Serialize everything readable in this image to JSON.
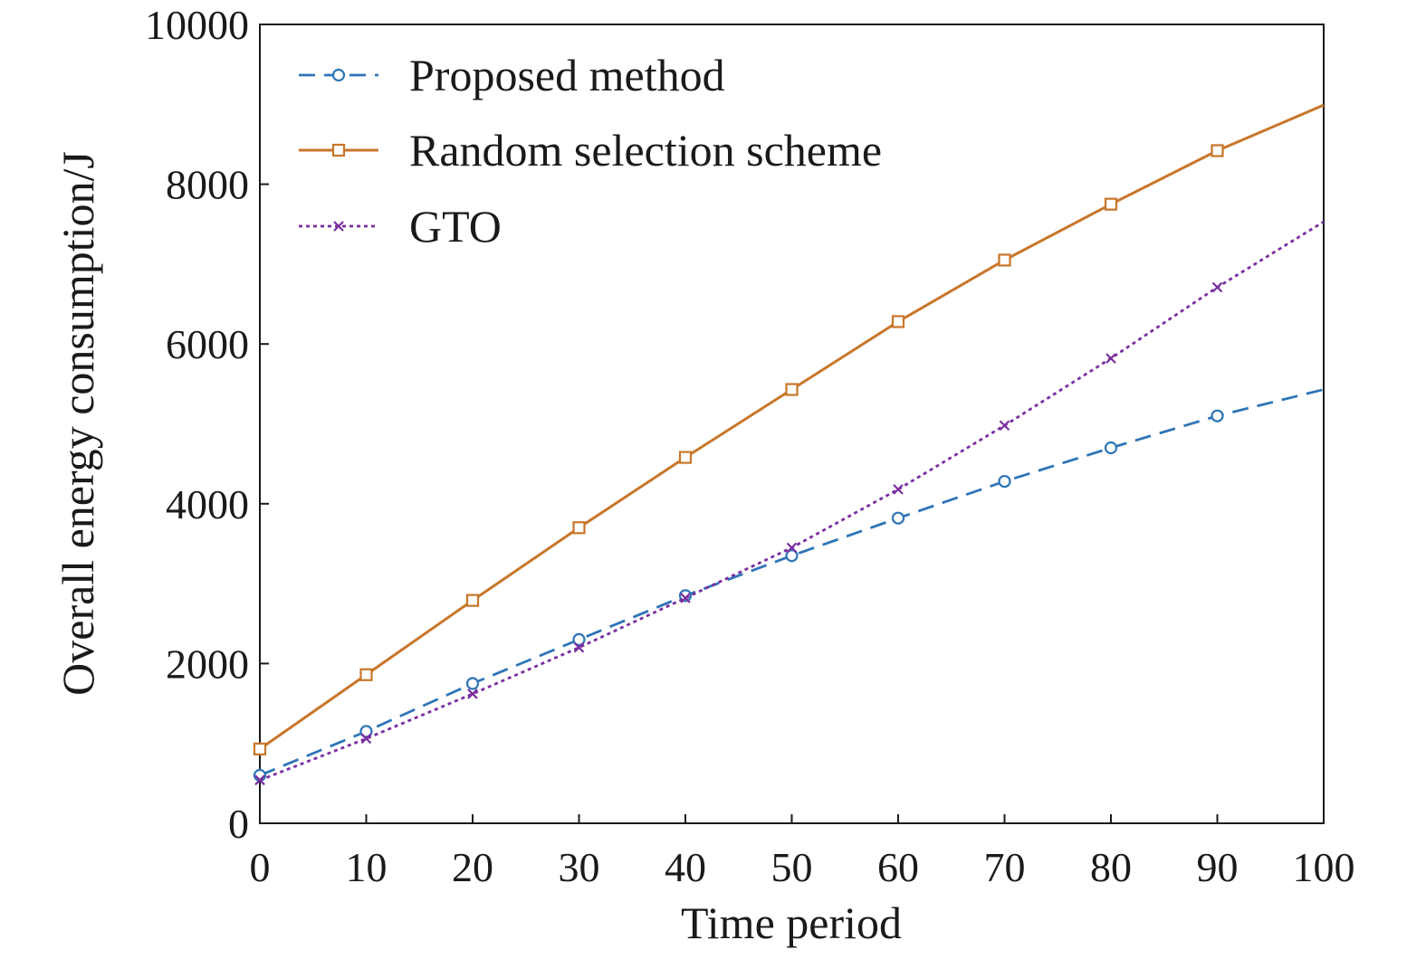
{
  "chart_data": {
    "type": "line",
    "xlabel": "Time period",
    "ylabel": "Overall energy consumption/J",
    "xlim": [
      0,
      100
    ],
    "ylim": [
      0,
      10000
    ],
    "xticks": [
      0,
      10,
      20,
      30,
      40,
      50,
      60,
      70,
      80,
      90,
      100
    ],
    "yticks": [
      0,
      2000,
      4000,
      6000,
      8000,
      10000
    ],
    "xtick_labels": [
      "0",
      "10",
      "20",
      "30",
      "40",
      "50",
      "60",
      "70",
      "80",
      "90",
      "100"
    ],
    "ytick_labels": [
      "0",
      "2000",
      "4000",
      "6000",
      "8000",
      "10000"
    ],
    "grid": false,
    "legend_position": "top-left",
    "series": [
      {
        "name": "Proposed method",
        "color": "#2e75b6",
        "style": "dashed",
        "marker": "circle",
        "x": [
          0,
          10,
          20,
          30,
          40,
          50,
          60,
          70,
          80,
          90,
          100
        ],
        "y": [
          600,
          1150,
          1750,
          2300,
          2850,
          3350,
          3820,
          4280,
          4700,
          5100,
          5430
        ]
      },
      {
        "name": "Random selection scheme",
        "color": "#c8762a",
        "style": "solid",
        "marker": "square",
        "x": [
          0,
          10,
          20,
          30,
          40,
          50,
          60,
          70,
          80,
          90,
          100
        ],
        "y": [
          930,
          1860,
          2790,
          3700,
          4580,
          5430,
          6280,
          7050,
          7750,
          8420,
          8990
        ]
      },
      {
        "name": "GTO",
        "color": "#7a2ea0",
        "style": "dotted",
        "marker": "x",
        "x": [
          0,
          10,
          20,
          30,
          40,
          50,
          60,
          70,
          80,
          90,
          100
        ],
        "y": [
          540,
          1060,
          1620,
          2200,
          2820,
          3450,
          4180,
          4980,
          5820,
          6710,
          7530
        ]
      }
    ]
  }
}
